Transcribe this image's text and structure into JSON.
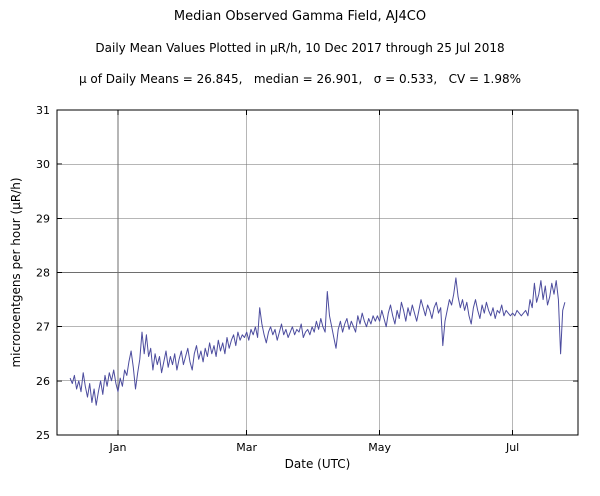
{
  "header": {
    "title": "Median Observed Gamma Field, AJ4CO",
    "subtitle": "Daily Mean Values Plotted in μR/h, 10 Dec 2017 through 25 Jul 2018",
    "stats": "μ of Daily Means = 26.845,   median = 26.901,   σ = 0.533,   CV = 1.98%"
  },
  "chart_data": {
    "type": "line",
    "title": "Median Observed Gamma Field, AJ4CO",
    "xlabel": "Date (UTC)",
    "ylabel": "microroentgens per hour (μR/h)",
    "ylim": [
      25,
      31
    ],
    "yticks": [
      25,
      26,
      27,
      28,
      29,
      30,
      31
    ],
    "xlim_days": [
      -6,
      233
    ],
    "x_start_date_label": "10 Dec 2017",
    "x_end_date_label": "25 Jul 2018",
    "xticks": [
      {
        "day": 22,
        "label": "Jan"
      },
      {
        "day": 81,
        "label": "Mar"
      },
      {
        "day": 142,
        "label": "May"
      },
      {
        "day": 203,
        "label": "Jul"
      }
    ],
    "grid": true,
    "legend": "none",
    "line_color": "#4c4c9e",
    "values": [
      26.05,
      25.95,
      26.1,
      25.85,
      26.0,
      25.8,
      26.15,
      25.9,
      25.7,
      25.95,
      25.6,
      25.85,
      25.55,
      25.8,
      26.0,
      25.75,
      26.1,
      25.9,
      26.15,
      26.0,
      26.2,
      25.95,
      25.8,
      26.05,
      25.9,
      26.2,
      26.1,
      26.35,
      26.55,
      26.25,
      25.85,
      26.15,
      26.4,
      26.9,
      26.5,
      26.85,
      26.45,
      26.6,
      26.2,
      26.5,
      26.3,
      26.45,
      26.15,
      26.35,
      26.55,
      26.25,
      26.45,
      26.3,
      26.5,
      26.2,
      26.4,
      26.55,
      26.3,
      26.45,
      26.6,
      26.35,
      26.2,
      26.5,
      26.65,
      26.4,
      26.55,
      26.35,
      26.6,
      26.45,
      26.7,
      26.5,
      26.65,
      26.45,
      26.75,
      26.55,
      26.7,
      26.5,
      26.8,
      26.6,
      26.75,
      26.85,
      26.65,
      26.9,
      26.75,
      26.85,
      26.8,
      26.9,
      26.75,
      26.95,
      26.85,
      27.0,
      26.8,
      27.35,
      27.05,
      26.85,
      26.7,
      26.9,
      27.0,
      26.85,
      26.95,
      26.75,
      26.9,
      27.05,
      26.85,
      26.95,
      26.8,
      26.9,
      27.0,
      26.85,
      26.95,
      26.9,
      27.05,
      26.8,
      26.9,
      26.95,
      26.85,
      27.0,
      26.9,
      27.1,
      26.95,
      27.15,
      27.0,
      26.9,
      27.65,
      27.2,
      27.0,
      26.8,
      26.6,
      26.95,
      27.1,
      26.9,
      27.05,
      27.15,
      26.95,
      27.1,
      27.0,
      26.9,
      27.2,
      27.05,
      27.25,
      27.1,
      27.0,
      27.15,
      27.05,
      27.2,
      27.1,
      27.2,
      27.1,
      27.3,
      27.15,
      27.0,
      27.25,
      27.4,
      27.2,
      27.05,
      27.3,
      27.15,
      27.45,
      27.3,
      27.1,
      27.35,
      27.2,
      27.4,
      27.25,
      27.1,
      27.3,
      27.5,
      27.35,
      27.2,
      27.4,
      27.3,
      27.15,
      27.35,
      27.45,
      27.25,
      27.35,
      26.65,
      27.1,
      27.3,
      27.5,
      27.4,
      27.6,
      27.9,
      27.55,
      27.35,
      27.5,
      27.3,
      27.45,
      27.2,
      27.05,
      27.35,
      27.5,
      27.3,
      27.15,
      27.4,
      27.25,
      27.45,
      27.3,
      27.2,
      27.35,
      27.15,
      27.3,
      27.25,
      27.4,
      27.2,
      27.3,
      27.25,
      27.2,
      27.25,
      27.2,
      27.3,
      27.25,
      27.2,
      27.25,
      27.3,
      27.2,
      27.5,
      27.35,
      27.8,
      27.45,
      27.6,
      27.85,
      27.5,
      27.75,
      27.4,
      27.55,
      27.8,
      27.6,
      27.85,
      27.5,
      26.5,
      27.3,
      27.45
    ]
  }
}
